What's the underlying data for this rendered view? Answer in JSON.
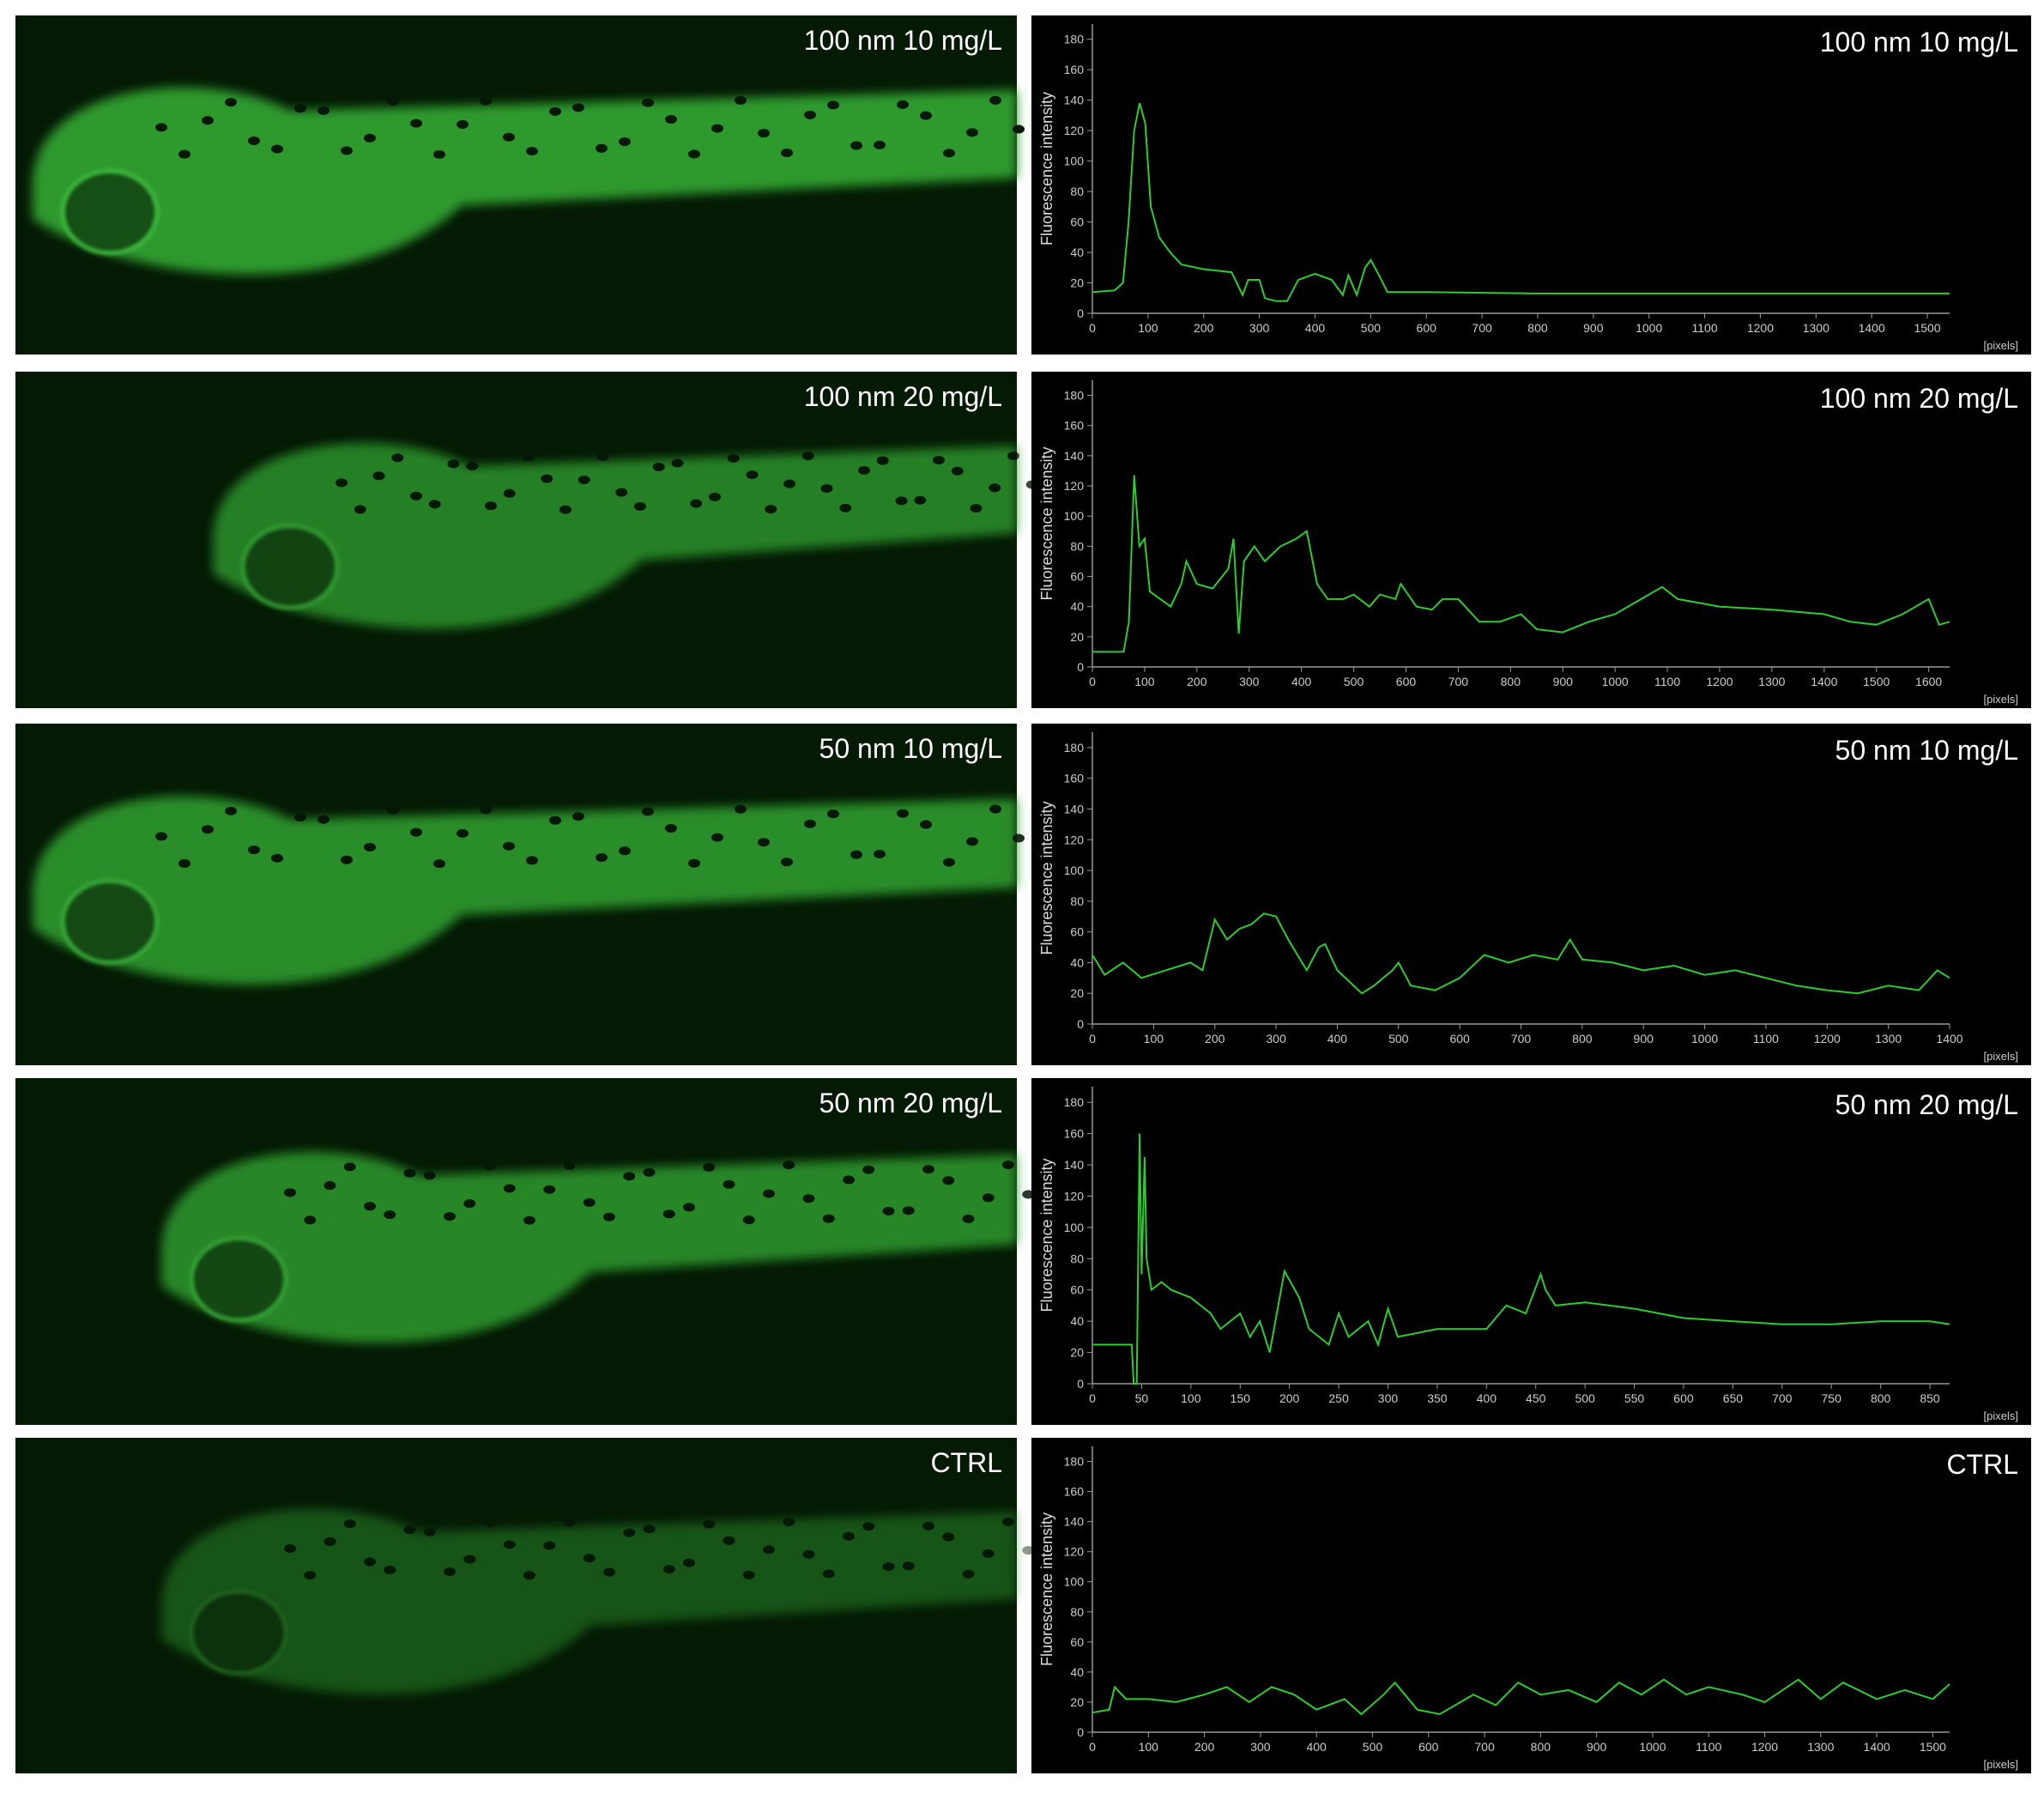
{
  "images": [
    {
      "label": "100 nm 10 mg/L"
    },
    {
      "label": "100 nm 20 mg/L"
    },
    {
      "label": "50 nm 10 mg/L"
    },
    {
      "label": "50 nm 20 mg/L"
    },
    {
      "label": "CTRL"
    }
  ],
  "chart_data": [
    {
      "type": "line",
      "title": "100 nm 10 mg/L",
      "ylabel": "Fluorescence intensity",
      "xlabel": "[pixels]",
      "color": "#2ecc2e",
      "x": [
        0,
        40,
        55,
        65,
        75,
        85,
        95,
        105,
        120,
        140,
        160,
        200,
        250,
        270,
        280,
        300,
        310,
        330,
        350,
        370,
        400,
        430,
        450,
        460,
        475,
        490,
        500,
        515,
        530,
        600,
        800,
        1000,
        1200,
        1540
      ],
      "values": [
        14,
        15,
        20,
        60,
        120,
        138,
        125,
        70,
        50,
        40,
        32,
        29,
        27,
        12,
        22,
        22,
        10,
        8,
        8,
        22,
        26,
        22,
        12,
        25,
        12,
        30,
        35,
        25,
        14,
        14,
        13,
        13,
        13,
        13
      ],
      "xlim": [
        0,
        1540
      ],
      "ylim": [
        0,
        190
      ],
      "xticks": [
        0,
        100,
        200,
        300,
        400,
        500,
        600,
        700,
        800,
        900,
        1000,
        1100,
        1200,
        1300,
        1400,
        1500
      ],
      "yticks": [
        0,
        20,
        40,
        60,
        80,
        100,
        120,
        140,
        160,
        180
      ]
    },
    {
      "type": "line",
      "title": "100 nm 20 mg/L",
      "ylabel": "Fluorescence intensity",
      "xlabel": "[pixels]",
      "color": "#2ecc2e",
      "x": [
        0,
        60,
        70,
        80,
        90,
        100,
        110,
        130,
        150,
        170,
        180,
        200,
        230,
        260,
        270,
        280,
        290,
        310,
        330,
        360,
        390,
        410,
        430,
        450,
        480,
        500,
        530,
        550,
        580,
        590,
        620,
        650,
        670,
        700,
        740,
        780,
        820,
        850,
        900,
        950,
        1000,
        1050,
        1090,
        1120,
        1200,
        1300,
        1400,
        1450,
        1500,
        1550,
        1600,
        1620,
        1640
      ],
      "values": [
        10,
        10,
        30,
        127,
        80,
        85,
        50,
        45,
        40,
        55,
        70,
        55,
        52,
        65,
        85,
        22,
        70,
        80,
        70,
        80,
        85,
        90,
        55,
        45,
        45,
        48,
        40,
        48,
        45,
        55,
        40,
        38,
        45,
        45,
        30,
        30,
        35,
        25,
        23,
        30,
        35,
        45,
        53,
        45,
        40,
        38,
        35,
        30,
        28,
        35,
        45,
        28,
        30
      ],
      "xlim": [
        0,
        1640
      ],
      "ylim": [
        0,
        190
      ],
      "xticks": [
        0,
        100,
        200,
        300,
        400,
        500,
        600,
        700,
        800,
        900,
        1000,
        1100,
        1200,
        1300,
        1400,
        1500,
        1600
      ],
      "yticks": [
        0,
        20,
        40,
        60,
        80,
        100,
        120,
        140,
        160,
        180
      ]
    },
    {
      "type": "line",
      "title": "50 nm 10 mg/L",
      "ylabel": "Fluorescence intensity",
      "xlabel": "[pixels]",
      "color": "#2ecc2e",
      "x": [
        0,
        20,
        50,
        80,
        120,
        160,
        180,
        200,
        220,
        240,
        260,
        280,
        300,
        320,
        350,
        370,
        380,
        400,
        440,
        460,
        490,
        500,
        520,
        560,
        600,
        640,
        680,
        720,
        760,
        780,
        800,
        850,
        900,
        950,
        1000,
        1050,
        1100,
        1150,
        1200,
        1250,
        1300,
        1350,
        1380,
        1400
      ],
      "values": [
        45,
        32,
        40,
        30,
        35,
        40,
        35,
        68,
        55,
        62,
        65,
        72,
        70,
        55,
        35,
        50,
        52,
        35,
        20,
        25,
        35,
        40,
        25,
        22,
        30,
        45,
        40,
        45,
        42,
        55,
        42,
        40,
        35,
        38,
        32,
        35,
        30,
        25,
        22,
        20,
        25,
        22,
        35,
        30
      ],
      "xlim": [
        0,
        1400
      ],
      "ylim": [
        0,
        190
      ],
      "xticks": [
        0,
        100,
        200,
        300,
        400,
        500,
        600,
        700,
        800,
        900,
        1000,
        1100,
        1200,
        1300,
        1400
      ],
      "yticks": [
        0,
        20,
        40,
        60,
        80,
        100,
        120,
        140,
        160,
        180
      ]
    },
    {
      "type": "line",
      "title": "50 nm 20 mg/L",
      "ylabel": "Fluorescence intensity",
      "xlabel": "[pixels]",
      "color": "#2ecc2e",
      "x": [
        0,
        40,
        42,
        45,
        48,
        50,
        53,
        55,
        60,
        70,
        80,
        100,
        120,
        130,
        150,
        160,
        170,
        180,
        195,
        210,
        220,
        240,
        250,
        260,
        280,
        290,
        300,
        310,
        350,
        400,
        420,
        440,
        455,
        460,
        470,
        500,
        550,
        600,
        650,
        700,
        750,
        800,
        850,
        870
      ],
      "values": [
        25,
        25,
        0,
        0,
        160,
        70,
        145,
        80,
        60,
        65,
        60,
        55,
        45,
        35,
        45,
        30,
        40,
        20,
        72,
        55,
        35,
        25,
        45,
        30,
        40,
        25,
        48,
        30,
        35,
        35,
        50,
        45,
        70,
        60,
        50,
        52,
        48,
        42,
        40,
        38,
        38,
        40,
        40,
        38
      ],
      "xlim": [
        0,
        870
      ],
      "ylim": [
        0,
        190
      ],
      "xticks": [
        0,
        50,
        100,
        150,
        200,
        250,
        300,
        350,
        400,
        450,
        500,
        550,
        600,
        650,
        700,
        750,
        800,
        850
      ],
      "yticks": [
        0,
        20,
        40,
        60,
        80,
        100,
        120,
        140,
        160,
        180
      ]
    },
    {
      "type": "line",
      "title": "CTRL",
      "ylabel": "Fluorescence intensity",
      "xlabel": "[pixels]",
      "color": "#2ecc2e",
      "x": [
        0,
        30,
        40,
        60,
        100,
        150,
        200,
        240,
        280,
        320,
        360,
        400,
        450,
        480,
        520,
        540,
        580,
        620,
        680,
        720,
        760,
        800,
        850,
        900,
        940,
        980,
        1020,
        1060,
        1100,
        1160,
        1200,
        1260,
        1300,
        1340,
        1400,
        1450,
        1500,
        1530
      ],
      "values": [
        13,
        15,
        30,
        22,
        22,
        20,
        25,
        30,
        20,
        30,
        25,
        15,
        22,
        12,
        25,
        33,
        15,
        12,
        25,
        18,
        33,
        25,
        28,
        20,
        33,
        25,
        35,
        25,
        30,
        25,
        20,
        35,
        22,
        33,
        22,
        28,
        22,
        32
      ],
      "xlim": [
        0,
        1530
      ],
      "ylim": [
        0,
        190
      ],
      "xticks": [
        0,
        100,
        200,
        300,
        400,
        500,
        600,
        700,
        800,
        900,
        1000,
        1100,
        1200,
        1300,
        1400,
        1500
      ],
      "yticks": [
        0,
        20,
        40,
        60,
        80,
        100,
        120,
        140,
        160,
        180
      ]
    }
  ]
}
